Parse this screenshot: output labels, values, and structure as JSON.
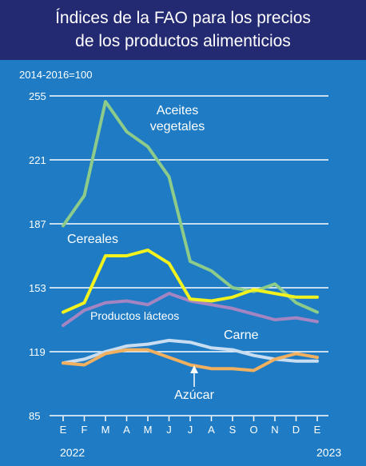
{
  "title_lines": [
    "Índices de la FAO para los precios",
    "de los productos alimenticios"
  ],
  "colors": {
    "background": "#1f7cc4",
    "title_band": "#232a72",
    "grid": "#ffffff",
    "text": "#ffffff"
  },
  "chart_data": {
    "type": "line",
    "title": "Índices de la FAO para los precios de los productos alimenticios",
    "ylabel": "2014-2016=100",
    "xlabel": "",
    "ylim": [
      85,
      255
    ],
    "yticks": [
      85,
      119,
      153,
      187,
      221,
      255
    ],
    "grid": true,
    "x": [
      "E",
      "F",
      "M",
      "A",
      "M",
      "J",
      "J",
      "A",
      "S",
      "O",
      "N",
      "D",
      "E"
    ],
    "year_labels": [
      "2022",
      "2023"
    ],
    "series": [
      {
        "name": "Aceites vegetales",
        "label_lines": [
          "Aceites",
          "vegetales"
        ],
        "color": "#8ccb8a",
        "values": [
          186,
          202,
          252,
          236,
          228,
          212,
          167,
          162,
          153,
          151,
          155,
          145,
          140
        ]
      },
      {
        "name": "Cereales",
        "label_lines": [
          "Cereales"
        ],
        "color": "#f2f21f",
        "values": [
          140,
          145,
          170,
          170,
          173,
          166,
          147,
          146,
          148,
          152,
          150,
          148,
          148
        ]
      },
      {
        "name": "Productos lácteos",
        "label_lines": [
          "Productos lácteos"
        ],
        "color": "#a584c2",
        "values": [
          133,
          141,
          145,
          146,
          144,
          150,
          146,
          144,
          142,
          139,
          136,
          137,
          135
        ]
      },
      {
        "name": "Carne",
        "label_lines": [
          "Carne"
        ],
        "color": "#c8ddf1",
        "values": [
          113,
          115,
          119,
          122,
          123,
          125,
          124,
          121,
          120,
          117,
          115,
          114,
          114
        ]
      },
      {
        "name": "Azúcar",
        "label_lines": [
          "Azúcar"
        ],
        "color": "#f0b060",
        "values": [
          113,
          112,
          118,
          120,
          120,
          116,
          112,
          110,
          110,
          109,
          115,
          118,
          116
        ]
      }
    ]
  }
}
